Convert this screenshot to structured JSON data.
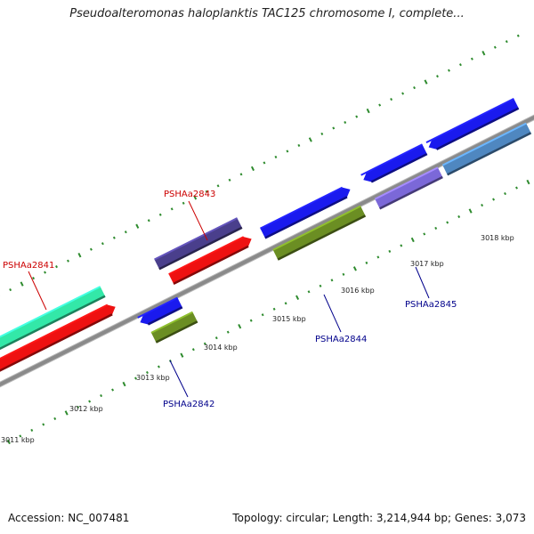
{
  "title": "Pseudoalteromonas haloplanktis TAC125 chromosome I, complete...",
  "footer": {
    "accession": "Accession: NC_007481",
    "summary": "Topology: circular; Length: 3,214,944 bp; Genes: 3,073"
  },
  "scale": {
    "unit": "kbp",
    "ticks": [
      {
        "kbp": 3011,
        "label": "3011 kbp"
      },
      {
        "kbp": 3012,
        "label": "3012 kbp"
      },
      {
        "kbp": 3013,
        "label": "3013 kbp"
      },
      {
        "kbp": 3014,
        "label": "3014 kbp"
      },
      {
        "kbp": 3015,
        "label": "3015 kbp"
      },
      {
        "kbp": 3016,
        "label": "3016 kbp"
      },
      {
        "kbp": 3017,
        "label": "3017 kbp"
      },
      {
        "kbp": 3018,
        "label": "3018 kbp"
      }
    ]
  },
  "colors": {
    "backbone": "#8a8a8a",
    "tick": "#2e8b2e",
    "label_red": "#cc0000",
    "label_blue": "#00008b"
  },
  "genes": [
    {
      "label": "PSHAa2841",
      "label_color": "#cc0000"
    },
    {
      "label": "PSHAa2842",
      "label_color": "#00008b"
    },
    {
      "label": "PSHAa2843",
      "label_color": "#cc0000"
    },
    {
      "label": "PSHAa2844",
      "label_color": "#00008b"
    },
    {
      "label": "PSHAa2845",
      "label_color": "#00008b"
    }
  ]
}
